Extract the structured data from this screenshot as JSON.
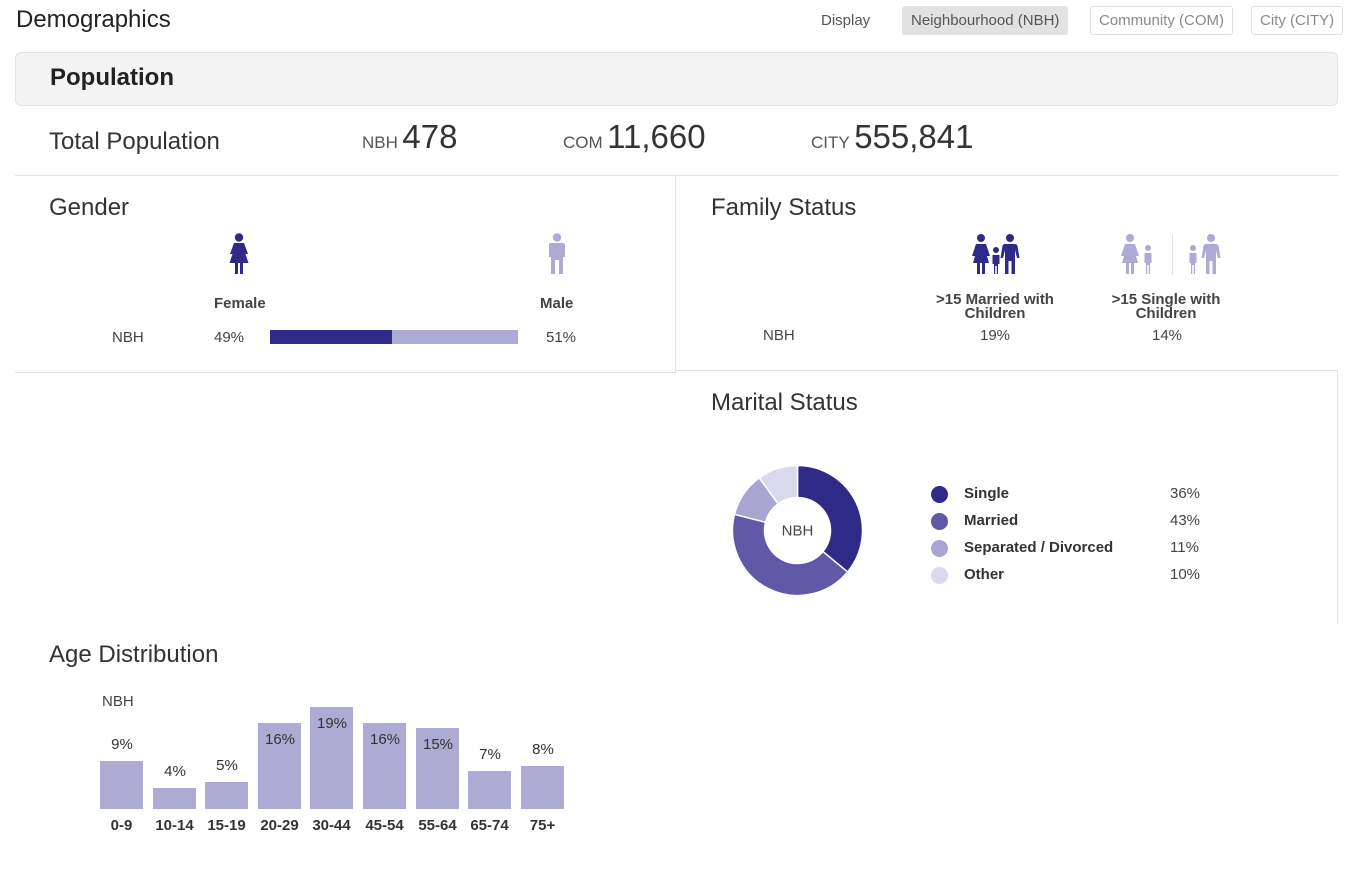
{
  "header": {
    "title": "Demographics",
    "display_label": "Display",
    "toggles": [
      {
        "label": "Neighbourhood (NBH)",
        "active": true
      },
      {
        "label": "Community (COM)",
        "active": false
      },
      {
        "label": "City (CITY)",
        "active": false
      }
    ]
  },
  "section": {
    "title": "Population"
  },
  "total_population": {
    "label": "Total Population",
    "stats": [
      {
        "prefix": "NBH",
        "value": "478"
      },
      {
        "prefix": "COM",
        "value": "11,660"
      },
      {
        "prefix": "CITY",
        "value": "555,841"
      }
    ]
  },
  "gender": {
    "title": "Gender",
    "female_label": "Female",
    "male_label": "Male",
    "row_label": "NBH",
    "female_pct": "49%",
    "male_pct": "51%",
    "female_fraction": 0.49,
    "icons": {
      "female": "female-figure-icon",
      "male": "male-figure-icon"
    },
    "colors": {
      "female": "#2f2a87",
      "male": "#adaad4"
    }
  },
  "family_status": {
    "title": "Family Status",
    "row_label": "NBH",
    "categories": [
      {
        "label": ">15 Married with Children",
        "value": "19%",
        "icon": "married-family-icon"
      },
      {
        "label": ">15 Single with Children",
        "value": "14%",
        "icon": "single-parent-family-icon"
      }
    ]
  },
  "marital_status": {
    "title": "Marital Status",
    "center_label": "NBH",
    "items": [
      {
        "label": "Single",
        "value": "36%",
        "pct": 36,
        "color": "#2f2a87"
      },
      {
        "label": "Married",
        "value": "43%",
        "pct": 43,
        "color": "#5f59a8"
      },
      {
        "label": "Separated / Divorced",
        "value": "11%",
        "pct": 11,
        "color": "#a9a5d1"
      },
      {
        "label": "Other",
        "value": "10%",
        "pct": 10,
        "color": "#dad8ec"
      }
    ]
  },
  "age_distribution": {
    "title": "Age Distribution",
    "series_label": "NBH",
    "color": "#adaad4"
  },
  "chart_data": [
    {
      "type": "bar",
      "title": "Age Distribution",
      "categories": [
        "0-9",
        "10-14",
        "15-19",
        "20-29",
        "30-44",
        "45-54",
        "55-64",
        "65-74",
        "75+"
      ],
      "series": [
        {
          "name": "NBH",
          "values": [
            9,
            4,
            5,
            16,
            19,
            16,
            15,
            7,
            8
          ]
        }
      ],
      "data_labels": [
        "9%",
        "4%",
        "5%",
        "16%",
        "19%",
        "16%",
        "15%",
        "7%",
        "8%"
      ],
      "ylim": [
        0,
        19
      ],
      "grid": false
    },
    {
      "type": "pie",
      "title": "Marital Status",
      "categories": [
        "Single",
        "Married",
        "Separated / Divorced",
        "Other"
      ],
      "values": [
        36,
        43,
        11,
        10
      ],
      "legend": "right"
    }
  ]
}
